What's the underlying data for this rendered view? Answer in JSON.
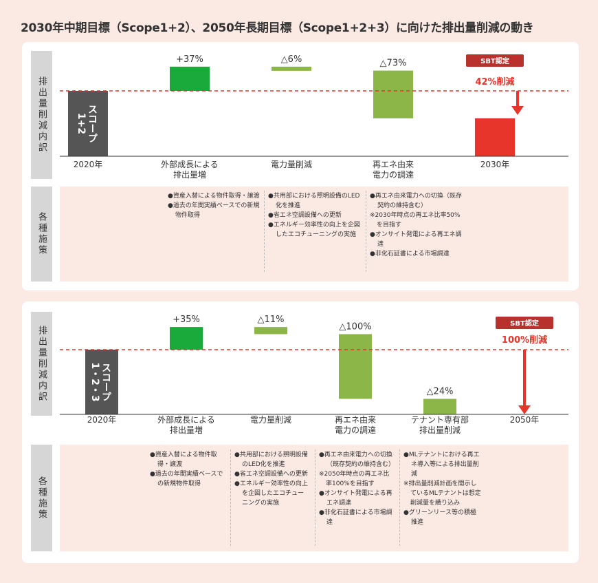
{
  "title": "2030年中期目標（Scope1+2）、2050年長期目標（Scope1+2+3）に向けた排出量削減の動き",
  "side_labels": {
    "emissions": "排出量削減内訳",
    "measures": "各種施策"
  },
  "colors": {
    "base": "#555555",
    "increase": "#1aaa3c",
    "reduction": "#8db648",
    "target": "#e8352c",
    "sbt": "#b8312c",
    "dashed": "#e0362e"
  },
  "chart_data": [
    {
      "type": "bar",
      "subtype": "waterfall",
      "categories": [
        "2020年",
        "外部成長による\n排出量増",
        "電力量削減",
        "再エネ由来\n電力の調達",
        "2030年"
      ],
      "bars": [
        {
          "kind": "base",
          "label": "スコープ 1+2",
          "from": 0,
          "to": 100
        },
        {
          "kind": "increase",
          "label": "+37%",
          "from": 100,
          "to": 137
        },
        {
          "kind": "reduction",
          "label": "△6%",
          "from": 137,
          "to": 131
        },
        {
          "kind": "reduction",
          "label": "△73%",
          "from": 131,
          "to": 58
        },
        {
          "kind": "target",
          "label": "",
          "from": 0,
          "to": 58
        }
      ],
      "reference_line": 100,
      "badge": "SBT認定",
      "target_label": "42%削減",
      "ylim": [
        0,
        140
      ]
    },
    {
      "type": "bar",
      "subtype": "waterfall",
      "categories": [
        "2020年",
        "外部成長による\n排出量増",
        "電力量削減",
        "再エネ由来\n電力の調達",
        "テナント専有部\n排出量削減",
        "2050年"
      ],
      "bars": [
        {
          "kind": "base",
          "label": "スコープ 1・2・3",
          "from": 0,
          "to": 100
        },
        {
          "kind": "increase",
          "label": "+35%",
          "from": 100,
          "to": 135
        },
        {
          "kind": "reduction",
          "label": "△11%",
          "from": 135,
          "to": 124
        },
        {
          "kind": "reduction",
          "label": "△100%",
          "from": 124,
          "to": 24
        },
        {
          "kind": "reduction",
          "label": "△24%",
          "from": 24,
          "to": 0
        },
        {
          "kind": "target",
          "label": "",
          "from": 0,
          "to": 0
        }
      ],
      "reference_line": 100,
      "badge": "SBT認定",
      "target_label": "100%削減",
      "ylim": [
        0,
        140
      ]
    }
  ],
  "measures": [
    [
      [
        {
          "t": "item",
          "s": "●資産入替による物件取得・譲渡"
        },
        {
          "t": "item",
          "s": "●過去の年間実績ベースでの新規物件取得"
        }
      ],
      [
        {
          "t": "item",
          "s": "●共用部における照明設備のLED化を推進"
        },
        {
          "t": "item",
          "s": "●省エネ空調設備への更新"
        },
        {
          "t": "item",
          "s": "●エネルギー効率性の向上を企図したエコチューニングの実施"
        }
      ],
      [
        {
          "t": "item",
          "s": "●再エネ由来電力への切換（既存契約の維持含む）"
        },
        {
          "t": "note",
          "s": "※2030年時点の再エネ比率50%を目指す"
        },
        {
          "t": "item",
          "s": "●オンサイト発電による再エネ調達"
        },
        {
          "t": "item",
          "s": "●非化石証書による市場調達"
        }
      ]
    ],
    [
      [
        {
          "t": "item",
          "s": "●資産入替による物件取得・譲渡"
        },
        {
          "t": "item",
          "s": "●過去の年間実績ベースでの新規物件取得"
        }
      ],
      [
        {
          "t": "item",
          "s": "●共用部における照明設備のLED化を推進"
        },
        {
          "t": "item",
          "s": "●省エネ空調設備への更新"
        },
        {
          "t": "item",
          "s": "●エネルギー効率性の向上を企図したエコチューニングの実施"
        }
      ],
      [
        {
          "t": "item",
          "s": "●再エネ由来電力への切換（既存契約の維持含む）"
        },
        {
          "t": "note",
          "s": "※2050年時点の再エネ比率100%を目指す"
        },
        {
          "t": "item",
          "s": "●オンサイト発電による再エネ調達"
        },
        {
          "t": "item",
          "s": "●非化石証書による市場調達"
        }
      ],
      [
        {
          "t": "item",
          "s": "●MLテナントにおける再エネ導入等による排出量削減"
        },
        {
          "t": "note",
          "s": "※排出量削減計画を開示しているMLテナントは想定削減量を織り込み"
        },
        {
          "t": "item",
          "s": "●グリーンリース等の積極推進"
        }
      ]
    ]
  ]
}
